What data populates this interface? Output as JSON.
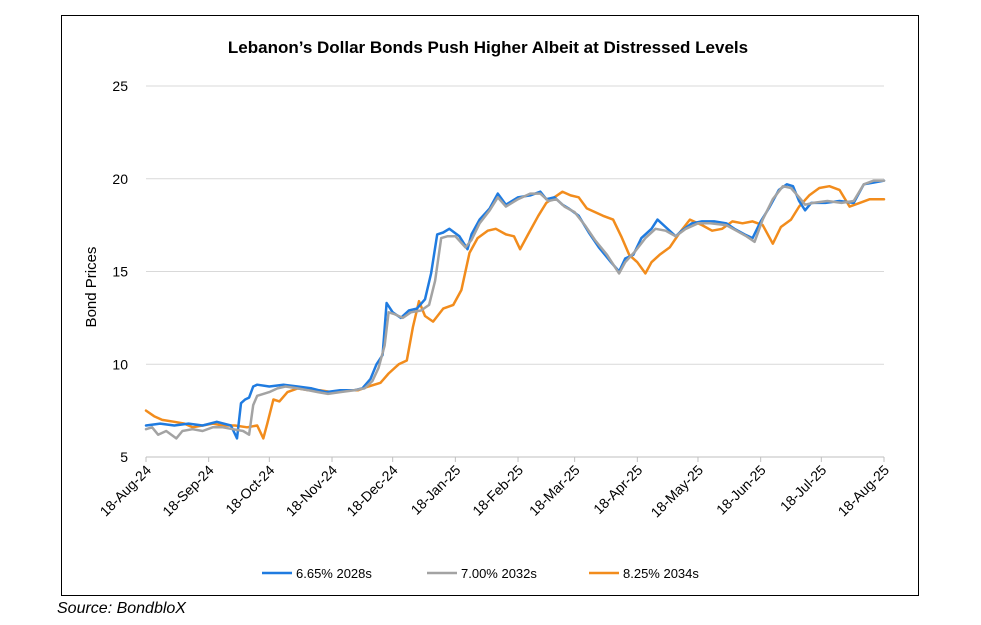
{
  "chart_data": {
    "type": "line",
    "title": "Lebanon’s Dollar Bonds Push Higher Albeit at Distressed Levels",
    "xlabel": "",
    "ylabel": "Bond Prices",
    "ylim": [
      5,
      25
    ],
    "y_ticks": [
      "5",
      "10",
      "15",
      "20",
      "25"
    ],
    "x_range": [
      "2024-08-18",
      "2025-08-18"
    ],
    "x_tick_labels": [
      "18-Aug-24",
      "18-Sep-24",
      "18-Oct-24",
      "18-Nov-24",
      "18-Dec-24",
      "18-Jan-25",
      "18-Feb-25",
      "18-Mar-25",
      "18-Apr-25",
      "18-May-25",
      "18-Jun-25",
      "18-Jul-25",
      "18-Aug-25"
    ],
    "x_tick_dates": [
      "2024-08-18",
      "2024-09-18",
      "2024-10-18",
      "2024-11-18",
      "2024-12-18",
      "2025-01-18",
      "2025-02-18",
      "2025-03-18",
      "2025-04-18",
      "2025-05-18",
      "2025-06-18",
      "2025-07-18",
      "2025-08-18"
    ],
    "grid": "horizontal",
    "legend_position": "bottom",
    "series": [
      {
        "name": "6.65% 2028s",
        "color": "#1f7be0",
        "points": [
          [
            "2024-08-18",
            6.7
          ],
          [
            "2024-08-25",
            6.8
          ],
          [
            "2024-09-01",
            6.7
          ],
          [
            "2024-09-08",
            6.8
          ],
          [
            "2024-09-15",
            6.7
          ],
          [
            "2024-09-22",
            6.9
          ],
          [
            "2024-09-29",
            6.7
          ],
          [
            "2024-10-02",
            6.0
          ],
          [
            "2024-10-04",
            7.9
          ],
          [
            "2024-10-06",
            8.1
          ],
          [
            "2024-10-08",
            8.2
          ],
          [
            "2024-10-10",
            8.8
          ],
          [
            "2024-10-12",
            8.9
          ],
          [
            "2024-10-18",
            8.8
          ],
          [
            "2024-10-25",
            8.9
          ],
          [
            "2024-11-01",
            8.8
          ],
          [
            "2024-11-08",
            8.7
          ],
          [
            "2024-11-15",
            8.5
          ],
          [
            "2024-11-22",
            8.6
          ],
          [
            "2024-11-29",
            8.6
          ],
          [
            "2024-12-03",
            8.7
          ],
          [
            "2024-12-07",
            9.2
          ],
          [
            "2024-12-10",
            10.0
          ],
          [
            "2024-12-13",
            10.5
          ],
          [
            "2024-12-15",
            13.3
          ],
          [
            "2024-12-18",
            12.8
          ],
          [
            "2024-12-22",
            12.5
          ],
          [
            "2024-12-26",
            12.9
          ],
          [
            "2024-12-30",
            13.0
          ],
          [
            "2025-01-03",
            13.5
          ],
          [
            "2025-01-06",
            14.9
          ],
          [
            "2025-01-09",
            17.0
          ],
          [
            "2025-01-12",
            17.1
          ],
          [
            "2025-01-15",
            17.3
          ],
          [
            "2025-01-20",
            16.9
          ],
          [
            "2025-01-24",
            16.2
          ],
          [
            "2025-01-26",
            17.0
          ],
          [
            "2025-01-30",
            17.8
          ],
          [
            "2025-02-04",
            18.4
          ],
          [
            "2025-02-08",
            19.2
          ],
          [
            "2025-02-12",
            18.6
          ],
          [
            "2025-02-18",
            19.0
          ],
          [
            "2025-02-24",
            19.1
          ],
          [
            "2025-03-01",
            19.3
          ],
          [
            "2025-03-04",
            18.9
          ],
          [
            "2025-03-08",
            19.0
          ],
          [
            "2025-03-12",
            18.6
          ],
          [
            "2025-03-15",
            18.4
          ],
          [
            "2025-03-20",
            18.0
          ],
          [
            "2025-03-25",
            17.1
          ],
          [
            "2025-03-30",
            16.3
          ],
          [
            "2025-04-05",
            15.5
          ],
          [
            "2025-04-09",
            15.0
          ],
          [
            "2025-04-12",
            15.7
          ],
          [
            "2025-04-16",
            15.9
          ],
          [
            "2025-04-20",
            16.8
          ],
          [
            "2025-04-25",
            17.3
          ],
          [
            "2025-04-28",
            17.8
          ],
          [
            "2025-05-02",
            17.4
          ],
          [
            "2025-05-07",
            16.9
          ],
          [
            "2025-05-10",
            17.2
          ],
          [
            "2025-05-15",
            17.6
          ],
          [
            "2025-05-20",
            17.7
          ],
          [
            "2025-05-26",
            17.7
          ],
          [
            "2025-06-01",
            17.6
          ],
          [
            "2025-06-05",
            17.3
          ],
          [
            "2025-06-10",
            17.0
          ],
          [
            "2025-06-14",
            16.8
          ],
          [
            "2025-06-18",
            17.7
          ],
          [
            "2025-06-22",
            18.4
          ],
          [
            "2025-06-27",
            19.4
          ],
          [
            "2025-07-01",
            19.7
          ],
          [
            "2025-07-04",
            19.6
          ],
          [
            "2025-07-07",
            18.8
          ],
          [
            "2025-07-10",
            18.3
          ],
          [
            "2025-07-13",
            18.7
          ],
          [
            "2025-07-20",
            18.7
          ],
          [
            "2025-07-27",
            18.8
          ],
          [
            "2025-08-03",
            18.7
          ],
          [
            "2025-08-08",
            19.7
          ],
          [
            "2025-08-13",
            19.8
          ],
          [
            "2025-08-18",
            19.9
          ]
        ]
      },
      {
        "name": "7.00% 2032s",
        "color": "#a3a3a3",
        "points": [
          [
            "2024-08-18",
            6.5
          ],
          [
            "2024-08-21",
            6.6
          ],
          [
            "2024-08-24",
            6.2
          ],
          [
            "2024-08-28",
            6.4
          ],
          [
            "2024-09-02",
            6.0
          ],
          [
            "2024-09-05",
            6.4
          ],
          [
            "2024-09-10",
            6.5
          ],
          [
            "2024-09-15",
            6.4
          ],
          [
            "2024-09-20",
            6.6
          ],
          [
            "2024-09-25",
            6.6
          ],
          [
            "2024-09-30",
            6.5
          ],
          [
            "2024-10-05",
            6.4
          ],
          [
            "2024-10-08",
            6.2
          ],
          [
            "2024-10-10",
            7.8
          ],
          [
            "2024-10-12",
            8.3
          ],
          [
            "2024-10-15",
            8.4
          ],
          [
            "2024-10-18",
            8.5
          ],
          [
            "2024-10-22",
            8.7
          ],
          [
            "2024-10-26",
            8.8
          ],
          [
            "2024-11-01",
            8.7
          ],
          [
            "2024-11-06",
            8.6
          ],
          [
            "2024-11-11",
            8.5
          ],
          [
            "2024-11-16",
            8.4
          ],
          [
            "2024-11-22",
            8.5
          ],
          [
            "2024-11-29",
            8.6
          ],
          [
            "2024-12-04",
            8.7
          ],
          [
            "2024-12-08",
            9.1
          ],
          [
            "2024-12-11",
            9.8
          ],
          [
            "2024-12-14",
            11.0
          ],
          [
            "2024-12-16",
            12.8
          ],
          [
            "2024-12-19",
            12.7
          ],
          [
            "2024-12-23",
            12.5
          ],
          [
            "2024-12-27",
            12.8
          ],
          [
            "2025-01-01",
            12.9
          ],
          [
            "2025-01-05",
            13.2
          ],
          [
            "2025-01-08",
            14.5
          ],
          [
            "2025-01-11",
            16.8
          ],
          [
            "2025-01-14",
            16.9
          ],
          [
            "2025-01-18",
            16.9
          ],
          [
            "2025-01-23",
            16.3
          ],
          [
            "2025-01-26",
            16.7
          ],
          [
            "2025-01-30",
            17.6
          ],
          [
            "2025-02-04",
            18.3
          ],
          [
            "2025-02-08",
            19.0
          ],
          [
            "2025-02-12",
            18.5
          ],
          [
            "2025-02-18",
            18.9
          ],
          [
            "2025-02-24",
            19.2
          ],
          [
            "2025-03-01",
            19.2
          ],
          [
            "2025-03-05",
            18.8
          ],
          [
            "2025-03-09",
            18.9
          ],
          [
            "2025-03-13",
            18.5
          ],
          [
            "2025-03-18",
            18.2
          ],
          [
            "2025-03-23",
            17.5
          ],
          [
            "2025-03-28",
            16.7
          ],
          [
            "2025-04-03",
            15.9
          ],
          [
            "2025-04-09",
            14.9
          ],
          [
            "2025-04-12",
            15.5
          ],
          [
            "2025-04-17",
            16.1
          ],
          [
            "2025-04-22",
            16.8
          ],
          [
            "2025-04-27",
            17.3
          ],
          [
            "2025-05-02",
            17.2
          ],
          [
            "2025-05-07",
            16.9
          ],
          [
            "2025-05-12",
            17.3
          ],
          [
            "2025-05-18",
            17.6
          ],
          [
            "2025-05-24",
            17.6
          ],
          [
            "2025-06-01",
            17.5
          ],
          [
            "2025-06-06",
            17.2
          ],
          [
            "2025-06-11",
            16.9
          ],
          [
            "2025-06-15",
            16.6
          ],
          [
            "2025-06-19",
            17.8
          ],
          [
            "2025-06-24",
            18.9
          ],
          [
            "2025-06-29",
            19.6
          ],
          [
            "2025-07-03",
            19.5
          ],
          [
            "2025-07-07",
            19.0
          ],
          [
            "2025-07-10",
            18.6
          ],
          [
            "2025-07-14",
            18.7
          ],
          [
            "2025-07-21",
            18.8
          ],
          [
            "2025-07-28",
            18.7
          ],
          [
            "2025-08-03",
            18.8
          ],
          [
            "2025-08-08",
            19.7
          ],
          [
            "2025-08-13",
            19.9
          ],
          [
            "2025-08-18",
            19.9
          ]
        ]
      },
      {
        "name": "8.25% 2034s",
        "color": "#f28c1c",
        "points": [
          [
            "2024-08-18",
            7.5
          ],
          [
            "2024-08-22",
            7.2
          ],
          [
            "2024-08-26",
            7.0
          ],
          [
            "2024-09-01",
            6.9
          ],
          [
            "2024-09-06",
            6.8
          ],
          [
            "2024-09-10",
            6.6
          ],
          [
            "2024-09-15",
            6.7
          ],
          [
            "2024-09-20",
            6.8
          ],
          [
            "2024-09-25",
            6.7
          ],
          [
            "2024-10-01",
            6.7
          ],
          [
            "2024-10-07",
            6.6
          ],
          [
            "2024-10-12",
            6.7
          ],
          [
            "2024-10-15",
            6.0
          ],
          [
            "2024-10-17",
            6.8
          ],
          [
            "2024-10-20",
            8.1
          ],
          [
            "2024-10-23",
            8.0
          ],
          [
            "2024-10-27",
            8.5
          ],
          [
            "2024-11-01",
            8.7
          ],
          [
            "2024-11-06",
            8.6
          ],
          [
            "2024-11-12",
            8.6
          ],
          [
            "2024-11-18",
            8.5
          ],
          [
            "2024-11-24",
            8.6
          ],
          [
            "2024-12-01",
            8.6
          ],
          [
            "2024-12-06",
            8.8
          ],
          [
            "2024-12-12",
            9.0
          ],
          [
            "2024-12-16",
            9.5
          ],
          [
            "2024-12-21",
            10.0
          ],
          [
            "2024-12-25",
            10.2
          ],
          [
            "2024-12-28",
            12.0
          ],
          [
            "2024-12-31",
            13.4
          ],
          [
            "2025-01-03",
            12.6
          ],
          [
            "2025-01-07",
            12.3
          ],
          [
            "2025-01-12",
            13.0
          ],
          [
            "2025-01-17",
            13.2
          ],
          [
            "2025-01-21",
            14.0
          ],
          [
            "2025-01-25",
            16.0
          ],
          [
            "2025-01-29",
            16.8
          ],
          [
            "2025-02-03",
            17.2
          ],
          [
            "2025-02-07",
            17.3
          ],
          [
            "2025-02-12",
            17.0
          ],
          [
            "2025-02-16",
            16.9
          ],
          [
            "2025-02-19",
            16.2
          ],
          [
            "2025-02-23",
            17.0
          ],
          [
            "2025-02-28",
            18.0
          ],
          [
            "2025-03-04",
            18.7
          ],
          [
            "2025-03-08",
            19.0
          ],
          [
            "2025-03-12",
            19.3
          ],
          [
            "2025-03-16",
            19.1
          ],
          [
            "2025-03-20",
            19.0
          ],
          [
            "2025-03-24",
            18.4
          ],
          [
            "2025-04-01",
            18.0
          ],
          [
            "2025-04-06",
            17.8
          ],
          [
            "2025-04-10",
            16.9
          ],
          [
            "2025-04-14",
            15.9
          ],
          [
            "2025-04-18",
            15.5
          ],
          [
            "2025-04-22",
            14.9
          ],
          [
            "2025-04-25",
            15.5
          ],
          [
            "2025-04-29",
            15.9
          ],
          [
            "2025-05-04",
            16.3
          ],
          [
            "2025-05-09",
            17.1
          ],
          [
            "2025-05-14",
            17.8
          ],
          [
            "2025-05-20",
            17.5
          ],
          [
            "2025-05-25",
            17.2
          ],
          [
            "2025-05-30",
            17.3
          ],
          [
            "2025-06-04",
            17.7
          ],
          [
            "2025-06-09",
            17.6
          ],
          [
            "2025-06-14",
            17.7
          ],
          [
            "2025-06-19",
            17.5
          ],
          [
            "2025-06-24",
            16.5
          ],
          [
            "2025-06-28",
            17.4
          ],
          [
            "2025-07-03",
            17.8
          ],
          [
            "2025-07-07",
            18.5
          ],
          [
            "2025-07-12",
            19.1
          ],
          [
            "2025-07-17",
            19.5
          ],
          [
            "2025-07-22",
            19.6
          ],
          [
            "2025-07-27",
            19.4
          ],
          [
            "2025-08-01",
            18.5
          ],
          [
            "2025-08-06",
            18.7
          ],
          [
            "2025-08-11",
            18.9
          ],
          [
            "2025-08-18",
            18.9
          ]
        ]
      }
    ],
    "source": "Source: BondbloX"
  }
}
